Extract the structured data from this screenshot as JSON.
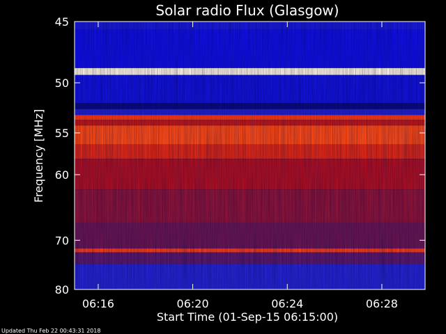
{
  "chart_data": {
    "type": "heatmap",
    "title": "Solar radio Flux (Glasgow)",
    "xlabel": "Start Time (01-Sep-15 06:15:00)",
    "ylabel": "Frequency [MHz]",
    "x_start": "06:15:00",
    "x_end": "06:29:50",
    "xlim_minutes": [
      0,
      14.83
    ],
    "ylim": [
      45,
      80
    ],
    "y_scale": "reciprocal",
    "x_ticks": [
      {
        "label": "06:16",
        "minute": 1
      },
      {
        "label": "06:20",
        "minute": 5
      },
      {
        "label": "06:24",
        "minute": 9
      },
      {
        "label": "06:28",
        "minute": 13
      }
    ],
    "y_ticks": [
      45,
      50,
      55,
      60,
      70,
      80
    ],
    "intensity_bands": [
      {
        "from": 45.0,
        "to": 45.6,
        "color": "#1a1ad8"
      },
      {
        "from": 45.6,
        "to": 48.7,
        "color": "#1010e0"
      },
      {
        "from": 48.7,
        "to": 49.3,
        "color": "#fff6e0"
      },
      {
        "from": 49.3,
        "to": 51.9,
        "color": "#1212d8"
      },
      {
        "from": 51.9,
        "to": 52.5,
        "color": "#0a0a80"
      },
      {
        "from": 52.5,
        "to": 53.1,
        "color": "#2020d0"
      },
      {
        "from": 53.1,
        "to": 53.6,
        "color": "#ff3a10"
      },
      {
        "from": 53.6,
        "to": 54.2,
        "color": "#c01818"
      },
      {
        "from": 54.2,
        "to": 56.3,
        "color": "#ff4a14"
      },
      {
        "from": 56.3,
        "to": 58.0,
        "color": "#e02814"
      },
      {
        "from": 58.0,
        "to": 62.0,
        "color": "#b01020"
      },
      {
        "from": 62.0,
        "to": 67.0,
        "color": "#8c1438"
      },
      {
        "from": 67.0,
        "to": 71.5,
        "color": "#6a1650"
      },
      {
        "from": 71.5,
        "to": 72.2,
        "color": "#ff3a10"
      },
      {
        "from": 72.2,
        "to": 74.5,
        "color": "#5a1868"
      },
      {
        "from": 74.5,
        "to": 80.0,
        "color": "#2424d0"
      }
    ],
    "colorscale": [
      "#00007a",
      "#0000ff",
      "#ff0000",
      "#ffff80",
      "#ffffff"
    ],
    "grid": false
  },
  "footer": {
    "updated": "Updated Thu Feb 22 00:43:31 2018"
  }
}
